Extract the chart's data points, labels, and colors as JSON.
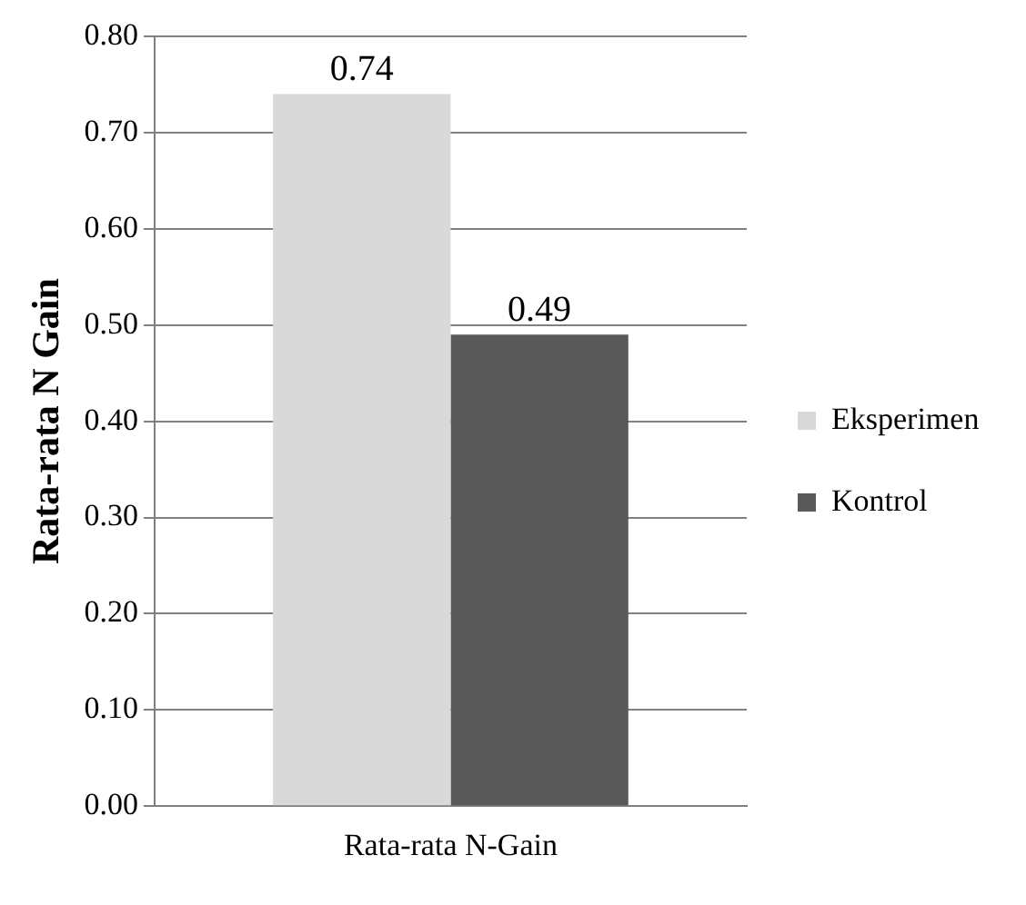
{
  "chart_data": {
    "type": "bar",
    "ylabel": "Rata-rata N Gain",
    "categories": [
      "Rata-rata N-Gain"
    ],
    "series": [
      {
        "name": "Eksperimen",
        "color": "#d9d9d9",
        "values": [
          0.74
        ]
      },
      {
        "name": "Kontrol",
        "color": "#595959",
        "values": [
          0.49
        ]
      }
    ],
    "ylim": [
      0,
      0.8
    ],
    "yticks": [
      {
        "value": 0,
        "label": "0.00"
      },
      {
        "value": 0.1,
        "label": "0.10"
      },
      {
        "value": 0.2,
        "label": "0.20"
      },
      {
        "value": 0.3,
        "label": "0.30"
      },
      {
        "value": 0.4,
        "label": "0.40"
      },
      {
        "value": 0.5,
        "label": "0.50"
      },
      {
        "value": 0.6,
        "label": "0.60"
      },
      {
        "value": 0.7,
        "label": "0.70"
      },
      {
        "value": 0.8,
        "label": "0.80"
      }
    ],
    "grid": "y",
    "legend": "right",
    "data_labels": true
  }
}
